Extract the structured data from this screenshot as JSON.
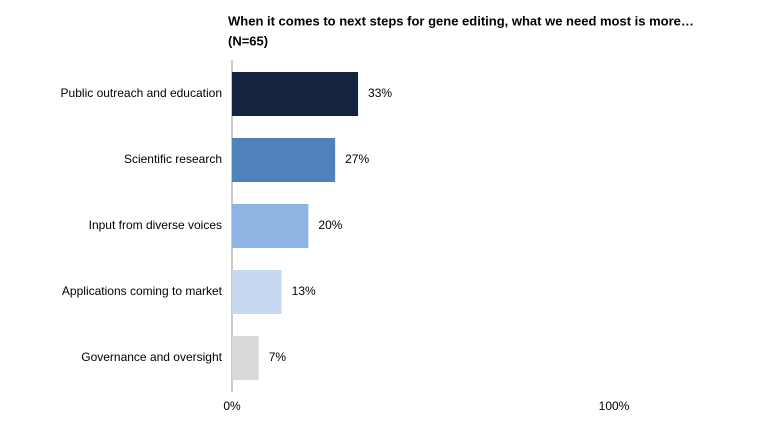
{
  "chart_data": {
    "type": "bar",
    "orientation": "horizontal",
    "title": "When it comes to next steps for gene editing, what we need most is more…",
    "subtitle": "(N=65)",
    "categories": [
      "Public outreach and education",
      "Scientific research",
      "Input from diverse voices",
      "Applications coming to market",
      "Governance and oversight"
    ],
    "values": [
      33,
      27,
      20,
      13,
      7
    ],
    "value_labels": [
      "33%",
      "27%",
      "20%",
      "13%",
      "7%"
    ],
    "colors": [
      "#14243f",
      "#4f81bd",
      "#8eb4e3",
      "#c6d9f1",
      "#d9d9d9"
    ],
    "xlim": [
      0,
      100
    ],
    "xticks": [
      {
        "value": 0,
        "label": "0%"
      },
      {
        "value": 100,
        "label": "100%"
      }
    ]
  }
}
